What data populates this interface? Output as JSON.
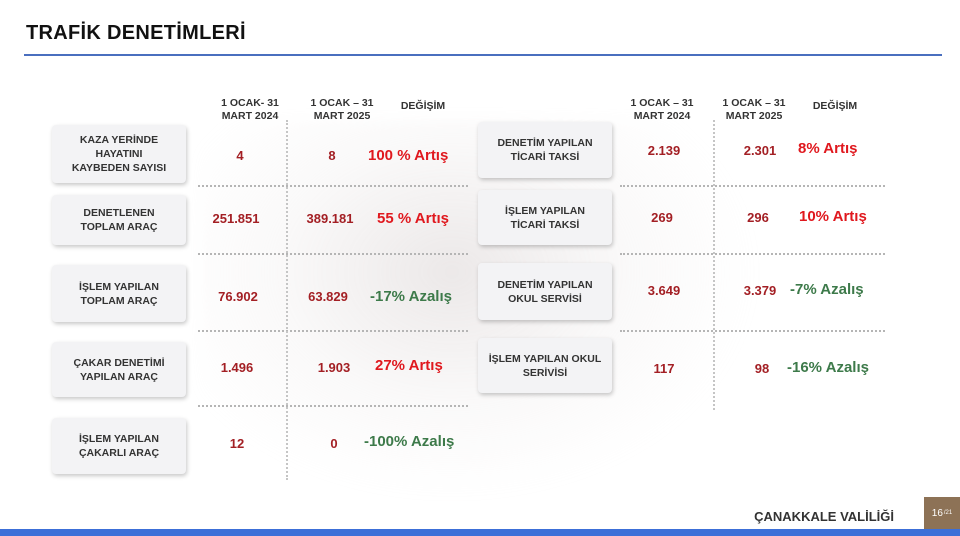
{
  "title": "TRAFİK DENETİMLERİ",
  "left": {
    "headers": {
      "col1_line1": "1 OCAK- 31",
      "col1_line2": "MART 2024",
      "col2_line1": "1 OCAK – 31",
      "col2_line2": "MART 2025",
      "change": "DEĞİŞİM"
    },
    "rows": [
      {
        "label_lines": [
          "KAZA YERİNDE",
          "HAYATINI",
          "KAYBEDEN SAYISI"
        ],
        "v2024": "4",
        "v2025": "8",
        "change": "100 %  Artış",
        "dir": "up"
      },
      {
        "label_lines": [
          "DENETLENEN",
          "TOPLAM ARAÇ"
        ],
        "v2024": "251.851",
        "v2025": "389.181",
        "change": "55 % Artış",
        "dir": "up"
      },
      {
        "label_lines": [
          "İŞLEM YAPILAN",
          "TOPLAM ARAÇ"
        ],
        "v2024": "76.902",
        "v2025": "63.829",
        "change": "-17% Azalış",
        "dir": "down"
      },
      {
        "label_lines": [
          "ÇAKAR DENETİMİ",
          "YAPILAN ARAÇ"
        ],
        "v2024": "1.496",
        "v2025": "1.903",
        "change": "27% Artış",
        "dir": "up"
      },
      {
        "label_lines": [
          "İŞLEM YAPILAN",
          "ÇAKARLI ARAÇ"
        ],
        "v2024": "12",
        "v2025": "0",
        "change": "-100% Azalış",
        "dir": "down"
      }
    ]
  },
  "right": {
    "headers": {
      "col1_line1": "1 OCAK – 31",
      "col1_line2": "MART 2024",
      "col2_line1": "1 OCAK – 31",
      "col2_line2": "MART 2025",
      "change": "DEĞİŞİM"
    },
    "rows": [
      {
        "label_lines": [
          "DENETİM YAPILAN",
          "TİCARİ TAKSİ"
        ],
        "v2024": "2.139",
        "v2025": "2.301",
        "change": "8% Artış",
        "dir": "up"
      },
      {
        "label_lines": [
          "İŞLEM YAPILAN",
          "TİCARİ TAKSİ"
        ],
        "v2024": "269",
        "v2025": "296",
        "change": "10% Artış",
        "dir": "up"
      },
      {
        "label_lines": [
          "DENETİM YAPILAN",
          "OKUL SERVİSİ"
        ],
        "v2024": "3.649",
        "v2025": "3.379",
        "change": "-7% Azalış",
        "dir": "down"
      },
      {
        "label_lines": [
          "İŞLEM YAPILAN OKUL",
          "SERİVİSİ"
        ],
        "v2024": "117",
        "v2025": "98",
        "change": "-16% Azalış",
        "dir": "down"
      }
    ]
  },
  "footer": {
    "org": "ÇANAKKALE VALİLİĞİ",
    "page": "16",
    "total": "/21"
  },
  "colors": {
    "increase": "#e0181e",
    "decrease": "#3d7a4a",
    "value": "#a31f24",
    "accent": "#4a6fbf",
    "page_badge": "#8d7256"
  }
}
